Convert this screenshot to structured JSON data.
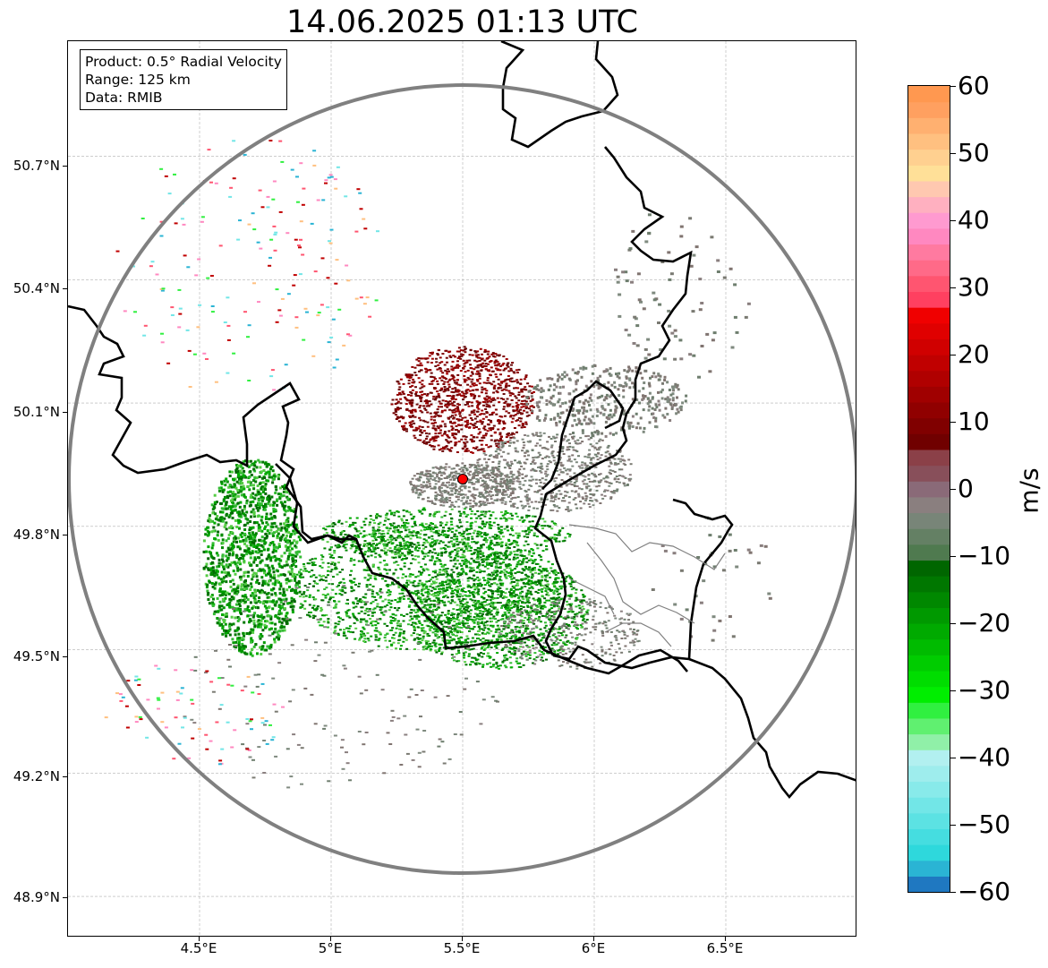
{
  "title": "14.06.2025 01:13 UTC",
  "info": {
    "product": "Product: 0.5° Radial Velocity",
    "range": "Range: 125 km",
    "source": "Data: RMIB"
  },
  "axes": {
    "lat_labels": [
      "50.7°N",
      "50.4°N",
      "50.1°N",
      "49.8°N",
      "49.5°N",
      "49.2°N",
      "48.9°N"
    ],
    "lon_labels": [
      "4.5°E",
      "5°E",
      "5.5°E",
      "6°E",
      "6.5°E"
    ],
    "lat_values": [
      50.7,
      50.4,
      50.1,
      49.8,
      49.5,
      49.2,
      48.9
    ],
    "lon_values": [
      4.5,
      5.0,
      5.5,
      6.0,
      6.5
    ],
    "lon_range": [
      4.0,
      7.0
    ],
    "lat_range": [
      48.8,
      50.98
    ],
    "grid": true
  },
  "radar": {
    "site_lon": 5.5,
    "site_lat": 49.915,
    "range_km": 125,
    "site_marker_color": "#ff0000",
    "range_ring_color": "#808080"
  },
  "colorbar": {
    "unit": "m/s",
    "min": -60,
    "max": 60,
    "tick_labels": [
      "60",
      "50",
      "40",
      "30",
      "20",
      "10",
      "0",
      "−10",
      "−20",
      "−30",
      "−40",
      "−50",
      "−60"
    ],
    "tick_values": [
      60,
      50,
      40,
      30,
      20,
      10,
      0,
      -10,
      -20,
      -30,
      -40,
      -50,
      -60
    ],
    "colors_bottom_to_top": [
      "#1f78c1",
      "#2ab4d4",
      "#2ed8dc",
      "#45dde0",
      "#5ce2e3",
      "#72e6e7",
      "#88eaea",
      "#9eeded",
      "#b2f0f0",
      "#90f0a8",
      "#60f070",
      "#30f040",
      "#00ee00",
      "#00dd00",
      "#00cc00",
      "#00bb00",
      "#00aa00",
      "#009900",
      "#008800",
      "#007700",
      "#006600",
      "#4f7a4f",
      "#648064",
      "#788578",
      "#8a7f7f",
      "#8a6a78",
      "#884f5a",
      "#8b4048",
      "#700000",
      "#800000",
      "#900000",
      "#a00000",
      "#b00000",
      "#c00000",
      "#d00000",
      "#e00000",
      "#f00000",
      "#ff4060",
      "#ff5570",
      "#ff6a88",
      "#ff7aa0",
      "#ff88c0",
      "#ff9ad0",
      "#ffb0c0",
      "#ffc8b0",
      "#ffe098",
      "#ffd090",
      "#ffc080",
      "#ffb070",
      "#ffa060",
      "#ff9850"
    ]
  },
  "colors": {
    "border": "#000000",
    "subborder": "#808080",
    "grid": "#b0b0b0"
  }
}
